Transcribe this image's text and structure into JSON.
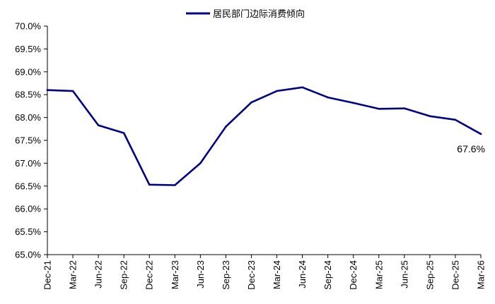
{
  "chart_data": {
    "type": "line",
    "title": "",
    "xlabel": "",
    "ylabel": "",
    "categories": [
      "Dec-21",
      "Mar-22",
      "Jun-22",
      "Sep-22",
      "Dec-22",
      "Mar-23",
      "Jun-23",
      "Sep-23",
      "Dec-23",
      "Mar-24",
      "Jun-24",
      "Sep-24",
      "Dec-24",
      "Mar-25",
      "Jun-25",
      "Sep-25",
      "Dec-25",
      "Mar-26"
    ],
    "series": [
      {
        "name": "居民部门边际消费倾向",
        "color": "#000080",
        "values": [
          68.6,
          68.58,
          67.83,
          67.66,
          66.53,
          66.52,
          67.0,
          67.8,
          68.33,
          68.58,
          68.66,
          68.44,
          68.32,
          68.19,
          68.2,
          68.03,
          67.95,
          67.64
        ]
      }
    ],
    "ylim": [
      65.0,
      70.0
    ],
    "yticks": [
      "65.0%",
      "65.5%",
      "66.0%",
      "66.5%",
      "67.0%",
      "67.5%",
      "68.0%",
      "68.5%",
      "69.0%",
      "69.5%",
      "70.0%"
    ],
    "grid": false,
    "legend_position": "top-center",
    "annotations": [
      {
        "series_index": 0,
        "point_index": 17,
        "text": "67.6%"
      }
    ]
  }
}
